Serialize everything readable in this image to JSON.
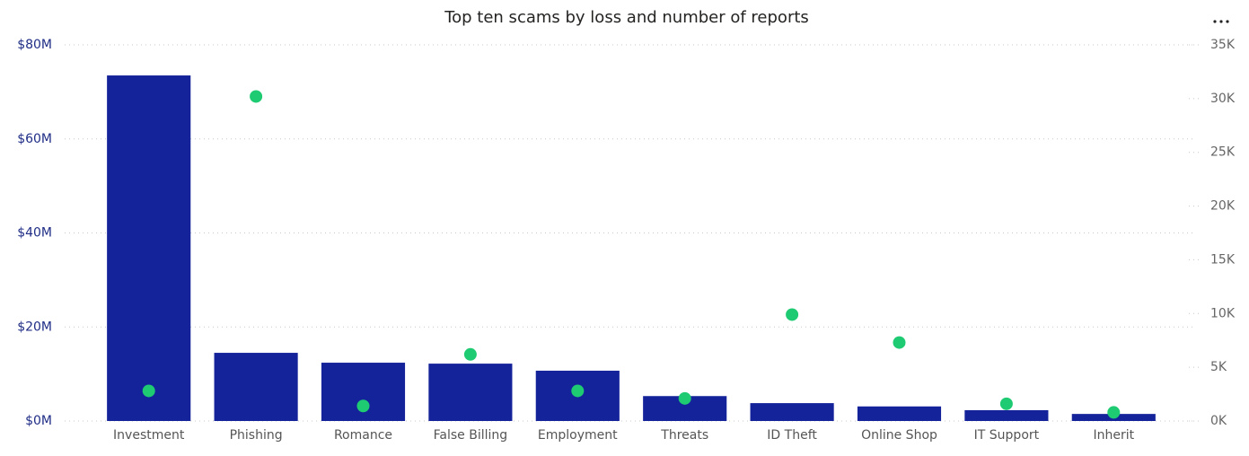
{
  "chart_data": {
    "type": "bar_scatter",
    "title": "Top ten scams by loss and number of reports",
    "categories": [
      "Investment",
      "Phishing",
      "Romance",
      "False Billing",
      "Employment",
      "Threats",
      "ID Theft",
      "Online Shop",
      "IT Support",
      "Inherit"
    ],
    "series": [
      {
        "type": "bar",
        "color": "#15239a",
        "values": [
          73500000,
          14500000,
          12400000,
          12200000,
          10700000,
          5300000,
          3800000,
          3100000,
          2300000,
          1500000
        ]
      },
      {
        "type": "scatter",
        "axis": "y2",
        "color": "#1ecb72",
        "values": [
          2800,
          30200,
          1400,
          6200,
          2800,
          2100,
          9900,
          7300,
          1600,
          800
        ]
      }
    ],
    "ylim": [
      0,
      80000000
    ],
    "yticks": [
      {
        "value": 0,
        "label": "$0M"
      },
      {
        "value": 20000000,
        "label": "$20M"
      },
      {
        "value": 40000000,
        "label": "$40M"
      },
      {
        "value": 60000000,
        "label": "$60M"
      },
      {
        "value": 80000000,
        "label": "$80M"
      }
    ],
    "y2lim": [
      0,
      35000
    ],
    "y2ticks": [
      {
        "value": 0,
        "label": "0K"
      },
      {
        "value": 5000,
        "label": "5K"
      },
      {
        "value": 10000,
        "label": "10K"
      },
      {
        "value": 15000,
        "label": "15K"
      },
      {
        "value": 20000,
        "label": "20K"
      },
      {
        "value": 25000,
        "label": "25K"
      },
      {
        "value": 30000,
        "label": "30K"
      },
      {
        "value": 35000,
        "label": "35K"
      }
    ],
    "grid": true
  }
}
